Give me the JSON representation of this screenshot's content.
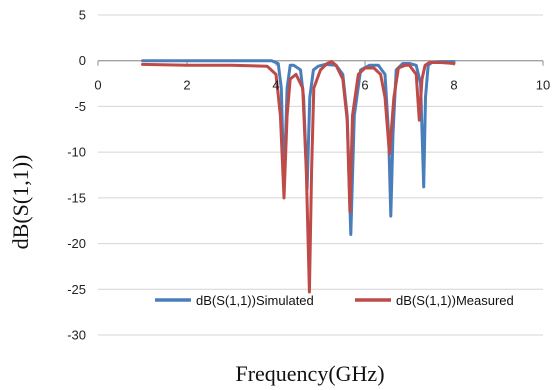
{
  "chart_data": {
    "type": "line",
    "xlabel": "Frequency(GHz)",
    "ylabel": "dB(S(1,1))",
    "xlim": [
      0,
      10
    ],
    "ylim": [
      -30,
      5
    ],
    "x_ticks": [
      0,
      2,
      4,
      6,
      8,
      10
    ],
    "y_ticks": [
      5,
      0,
      -5,
      -10,
      -15,
      -20,
      -25,
      -30
    ],
    "grid": "horizontal",
    "legend_position": "bottom",
    "series": [
      {
        "name": "dB(S(1,1))Simulated",
        "color": "#4a7ebb",
        "x": [
          1.0,
          3.9,
          4.05,
          4.12,
          4.18,
          4.25,
          4.32,
          4.4,
          4.55,
          4.62,
          4.7,
          4.76,
          4.84,
          4.95,
          5.1,
          5.35,
          5.5,
          5.6,
          5.68,
          5.76,
          5.9,
          6.1,
          6.3,
          6.45,
          6.53,
          6.58,
          6.63,
          6.7,
          6.85,
          7.0,
          7.15,
          7.25,
          7.32,
          7.36,
          7.42,
          7.5,
          7.7,
          8.0
        ],
        "y": [
          0.0,
          0.0,
          -0.3,
          -3.0,
          -14.0,
          -3.0,
          -0.5,
          -0.5,
          -1.0,
          -4.0,
          -14.0,
          -4.0,
          -1.0,
          -0.6,
          -0.4,
          -0.5,
          -1.5,
          -6.0,
          -19.0,
          -6.0,
          -1.0,
          -0.5,
          -0.5,
          -1.5,
          -8.0,
          -17.0,
          -8.0,
          -1.0,
          -0.3,
          -0.3,
          -0.5,
          -2.5,
          -13.8,
          -4.0,
          -0.5,
          -0.2,
          -0.1,
          -0.1
        ]
      },
      {
        "name": "dB(S(1,1))Measured",
        "color": "#be4b48",
        "x": [
          1.0,
          2.0,
          3.0,
          3.8,
          4.0,
          4.1,
          4.18,
          4.25,
          4.32,
          4.45,
          4.6,
          4.68,
          4.75,
          4.8,
          4.85,
          5.0,
          5.15,
          5.25,
          5.35,
          5.5,
          5.6,
          5.66,
          5.72,
          5.85,
          6.0,
          6.2,
          6.35,
          6.45,
          6.55,
          6.65,
          6.75,
          6.9,
          7.0,
          7.15,
          7.22,
          7.28,
          7.35,
          7.45,
          7.7,
          8.0
        ],
        "y": [
          -0.4,
          -0.5,
          -0.5,
          -0.6,
          -1.5,
          -6.0,
          -15.0,
          -6.0,
          -2.0,
          -1.5,
          -3.0,
          -12.0,
          -25.3,
          -12.0,
          -3.0,
          -1.0,
          -0.3,
          -0.1,
          -0.5,
          -2.0,
          -6.5,
          -16.5,
          -6.0,
          -1.5,
          -0.8,
          -0.8,
          -1.5,
          -4.0,
          -10.2,
          -4.0,
          -0.8,
          -0.5,
          -0.5,
          -1.5,
          -6.5,
          -2.0,
          -0.5,
          -0.2,
          -0.2,
          -0.3
        ]
      }
    ]
  }
}
